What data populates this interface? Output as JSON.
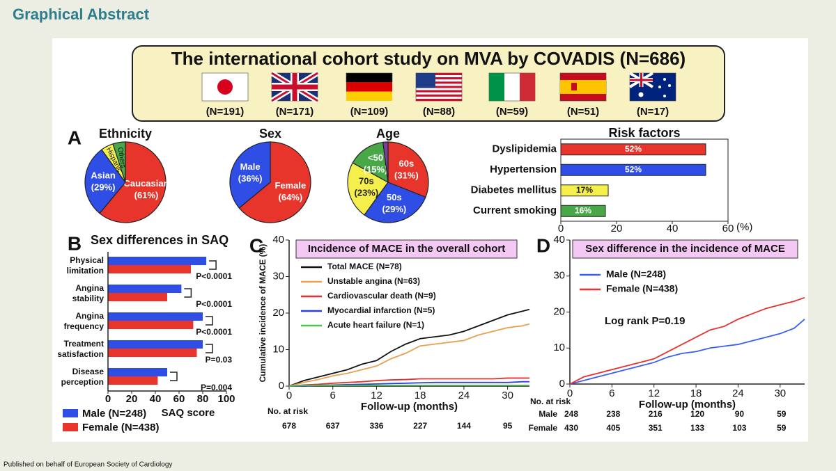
{
  "header": {
    "title": "Graphical Abstract"
  },
  "banner": {
    "title": "The international cohort study on MVA by COVADIS (N=686)",
    "countries": [
      "(N=191)",
      "(N=171)",
      "(N=109)",
      "(N=88)",
      "(N=59)",
      "(N=51)",
      "(N=17)"
    ]
  },
  "footer": "Published on behalf of European Society of Cardiology",
  "chart_data": [
    {
      "type": "pie",
      "panel": "A",
      "title": "Ethnicity",
      "categories": [
        "Caucasian",
        "Asian",
        "Hispanic",
        "Others"
      ],
      "values": [
        61,
        29,
        5,
        5
      ],
      "value_labels": [
        "(61%)",
        "(29%)",
        null,
        null
      ],
      "colors": [
        "#e8352b",
        "#2e4ee6",
        "#f4ef4a",
        "#48a848"
      ]
    },
    {
      "type": "pie",
      "title": "Sex",
      "categories": [
        "Female",
        "Male"
      ],
      "values": [
        64,
        36
      ],
      "value_labels": [
        "(64%)",
        "(36%)"
      ],
      "colors": [
        "#e8352b",
        "#2e4ee6"
      ]
    },
    {
      "type": "pie",
      "title": "Age",
      "categories": [
        "60s",
        "50s",
        "70s",
        "<50",
        null
      ],
      "values": [
        31,
        29,
        23,
        15,
        2
      ],
      "value_labels": [
        "(31%)",
        "(29%)",
        "(23%)",
        "(15%)",
        null
      ],
      "colors": [
        "#e8352b",
        "#2e4ee6",
        "#f4ef4a",
        "#48a848",
        "#7b3f9e"
      ]
    },
    {
      "type": "hbar",
      "title": "Risk factors",
      "categories": [
        "Dyslipidemia",
        "Hypertension",
        "Diabetes mellitus",
        "Current smoking"
      ],
      "values": [
        52,
        52,
        17,
        16
      ],
      "value_labels": [
        "52%",
        "52%",
        "17%",
        "16%"
      ],
      "colors": [
        "#e8352b",
        "#2e4ee6",
        "#f4ef4a",
        "#48a848"
      ],
      "xlim": [
        0,
        60
      ],
      "xticks": [
        0,
        20,
        40,
        60
      ],
      "x_label": "(%)"
    },
    {
      "type": "grouped_hbar",
      "panel": "B",
      "title": "Sex differences in SAQ",
      "categories": [
        "Physical limitation",
        "Angina stability",
        "Angina frequency",
        "Treatment satisfaction",
        "Disease perception"
      ],
      "series": [
        {
          "name": "Male (N=248)",
          "color": "#2e4ee6",
          "values": [
            83,
            62,
            80,
            80,
            50
          ]
        },
        {
          "name": "Female (N=438)",
          "color": "#e8352b",
          "values": [
            70,
            50,
            72,
            75,
            42
          ]
        }
      ],
      "annotations": [
        "P<0.0001",
        "P<0.0001",
        "P<0.0001",
        "P=0.03",
        "P=0.004"
      ],
      "xlim": [
        0,
        100
      ],
      "xticks": [
        0,
        20,
        40,
        60,
        80,
        100
      ],
      "x_label": "SAQ score"
    },
    {
      "type": "line",
      "panel": "C",
      "title": "Incidence of MACE in the overall cohort",
      "x": [
        0,
        2,
        4,
        6,
        8,
        10,
        12,
        14,
        16,
        18,
        20,
        22,
        24,
        26,
        28,
        30,
        32,
        33
      ],
      "series": [
        {
          "name": "Total MACE (N=78)",
          "color": "#111111",
          "values": [
            0,
            1.5,
            2.5,
            3.5,
            4.5,
            6,
            7,
            9.5,
            11.5,
            13,
            13.5,
            14,
            15,
            16.5,
            18,
            19.5,
            20.5,
            21
          ]
        },
        {
          "name": "Unstable angina (N=63)",
          "color": "#e8a050",
          "values": [
            0,
            1,
            1.8,
            2.8,
            3.5,
            4.5,
            5.5,
            7.5,
            9,
            11,
            11.5,
            12,
            12.5,
            14,
            15,
            16,
            16.5,
            17
          ]
        },
        {
          "name": "Cardiovascular death (N=9)",
          "color": "#e03030",
          "values": [
            0,
            0.3,
            0.5,
            0.8,
            1,
            1.2,
            1.5,
            1.7,
            1.8,
            2,
            2,
            2,
            2,
            2,
            2,
            2.2,
            2.2,
            2.2
          ]
        },
        {
          "name": "Myocardial infarction (N=5)",
          "color": "#2a3fe0",
          "values": [
            0,
            0,
            0.2,
            0.3,
            0.4,
            0.5,
            0.6,
            0.7,
            0.8,
            0.9,
            1,
            1,
            1,
            1,
            1,
            1,
            1.2,
            1.2
          ]
        },
        {
          "name": "Acute heart failure (N=1)",
          "color": "#50c050",
          "values": [
            0,
            0.2,
            0.2,
            0.2,
            0.2,
            0.2,
            0.2,
            0.2,
            0.2,
            0.2,
            0.2,
            0.2,
            0.2,
            0.2,
            0.2,
            0.2,
            0.2,
            0.2
          ]
        }
      ],
      "xlim": [
        0,
        33
      ],
      "xticks": [
        0,
        6,
        12,
        18,
        24,
        30
      ],
      "ylim": [
        0,
        40
      ],
      "yticks": [
        0,
        10,
        20,
        30,
        40
      ],
      "x_label": "Follow-up (months)",
      "y_label": "Cumulative incidence of MACE (%)",
      "risk_table": {
        "title": "No. at risk",
        "rows": [
          {
            "values": [
              678,
              637,
              336,
              227,
              144,
              95
            ]
          }
        ]
      }
    },
    {
      "type": "line",
      "panel": "D",
      "title": "Sex difference in the incidence of MACE",
      "x": [
        0,
        2,
        4,
        6,
        8,
        10,
        12,
        14,
        16,
        18,
        20,
        22,
        24,
        26,
        28,
        30,
        32,
        33.5
      ],
      "series": [
        {
          "name": "Male (N=248)",
          "color": "#3a5ef0",
          "values": [
            0,
            1,
            2,
            3,
            4,
            5,
            6,
            7.5,
            8.5,
            9,
            10,
            10.5,
            11,
            12,
            13,
            14,
            15.5,
            18
          ]
        },
        {
          "name": "Female (N=438)",
          "color": "#e83030",
          "values": [
            0,
            2,
            3,
            4,
            5,
            6,
            7,
            9,
            11,
            13,
            15,
            16,
            18,
            19.5,
            21,
            22,
            23,
            24
          ]
        }
      ],
      "xlim": [
        0,
        33.5
      ],
      "xticks": [
        0,
        6,
        12,
        18,
        24,
        30
      ],
      "ylim": [
        0,
        40
      ],
      "yticks": [
        0,
        10,
        20,
        30,
        40
      ],
      "x_label": "Follow-up (months)",
      "annotation": "Log rank P=0.19",
      "risk_table": {
        "title": "No. at risk",
        "rows": [
          {
            "name": "Male",
            "values": [
              248,
              238,
              216,
              120,
              90,
              59
            ]
          },
          {
            "name": "Female",
            "values": [
              430,
              405,
              351,
              133,
              103,
              59
            ]
          }
        ]
      }
    }
  ]
}
